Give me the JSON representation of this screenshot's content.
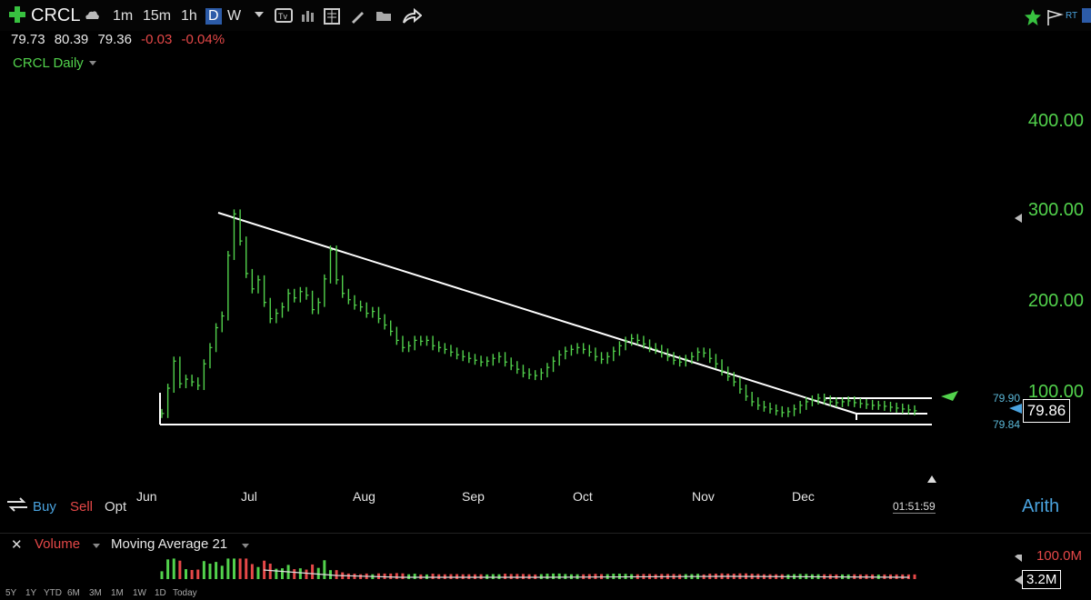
{
  "toolbar": {
    "symbol": "CRCL",
    "timeframes": [
      "1m",
      "15m",
      "1h",
      "D",
      "W"
    ],
    "active_timeframe": "D",
    "rt_label": "RT"
  },
  "quote": {
    "open": "79.73",
    "high": "80.39",
    "low": "79.36",
    "change": "-0.03",
    "change_pct": "-0.04%"
  },
  "chart_title": "CRCL Daily",
  "chart_data": {
    "type": "candlestick",
    "x_labels": [
      "Jun",
      "Jul",
      "Aug",
      "Sep",
      "Oct",
      "Nov",
      "Dec"
    ],
    "y_ticks": [
      "400.00",
      "300.00",
      "200.00",
      "100.00"
    ],
    "scale": "Arith",
    "last_price": "79.86",
    "pre_level": "79.90",
    "post_level": "79.84",
    "timer": "01:51:59",
    "closes": [
      77,
      105,
      135,
      110,
      115,
      112,
      108,
      132,
      150,
      172,
      185,
      252,
      298,
      268,
      232,
      215,
      225,
      200,
      182,
      188,
      195,
      210,
      205,
      212,
      208,
      192,
      200,
      226,
      258,
      225,
      210,
      203,
      197,
      195,
      188,
      190,
      182,
      175,
      168,
      158,
      150,
      152,
      158,
      157,
      158,
      152,
      150,
      148,
      145,
      142,
      140,
      138,
      136,
      134,
      135,
      138,
      140,
      134,
      130,
      126,
      122,
      120,
      119,
      122,
      128,
      135,
      142,
      146,
      148,
      150,
      148,
      145,
      140,
      137,
      140,
      146,
      152,
      157,
      160,
      158,
      154,
      150,
      148,
      144,
      140,
      136,
      134,
      137,
      140,
      145,
      144,
      138,
      132,
      124,
      118,
      112,
      104,
      96,
      90,
      86,
      84,
      82,
      80,
      78,
      79,
      82,
      86,
      90,
      92,
      94,
      92,
      90,
      89,
      90,
      91,
      89,
      88,
      87,
      86,
      86,
      85,
      84,
      83,
      82,
      81,
      80
    ],
    "volume_labels": [
      "100.0M",
      "3.2M"
    ]
  },
  "trade": {
    "buy": "Buy",
    "sell": "Sell",
    "opt": "Opt"
  },
  "volume_pane": {
    "label": "Volume",
    "study": "Moving Average 21"
  },
  "ranges": [
    "5Y",
    "1Y",
    "YTD",
    "6M",
    "3M",
    "1M",
    "1W",
    "1D",
    "Today"
  ],
  "colors": {
    "green": "#52d24c",
    "red": "#e54848",
    "blue": "#4aa3df"
  }
}
